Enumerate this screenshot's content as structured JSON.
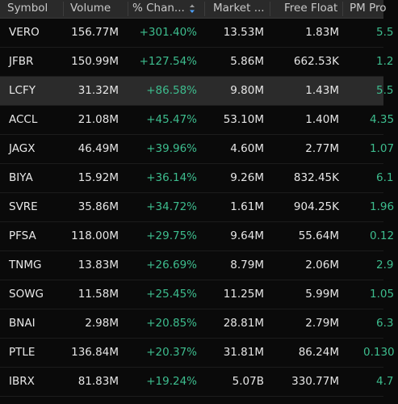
{
  "colors": {
    "positive": "#3dbd8e",
    "header_bg": "#2a2a2a",
    "row_selected_bg": "#2b2b2b",
    "background": "#0a0a0a"
  },
  "header": {
    "symbol": "Symbol",
    "volume": "Volume",
    "change": "% Chan...",
    "market_cap": "Market ...",
    "free_float": "Free Float",
    "pm": "PM Pro",
    "sort_icon": "sort-descending-icon"
  },
  "rows": [
    {
      "symbol": "VERO",
      "volume": "156.77M",
      "change": "+301.40%",
      "market_cap": "13.53M",
      "free_float": "1.83M",
      "pm": "5.5"
    },
    {
      "symbol": "JFBR",
      "volume": "150.99M",
      "change": "+127.54%",
      "market_cap": "5.86M",
      "free_float": "662.53K",
      "pm": "1.2"
    },
    {
      "symbol": "LCFY",
      "volume": "31.32M",
      "change": "+86.58%",
      "market_cap": "9.80M",
      "free_float": "1.43M",
      "pm": "5.5"
    },
    {
      "symbol": "ACCL",
      "volume": "21.08M",
      "change": "+45.47%",
      "market_cap": "53.10M",
      "free_float": "1.40M",
      "pm": "4.35"
    },
    {
      "symbol": "JAGX",
      "volume": "46.49M",
      "change": "+39.96%",
      "market_cap": "4.60M",
      "free_float": "2.77M",
      "pm": "1.07"
    },
    {
      "symbol": "BIYA",
      "volume": "15.92M",
      "change": "+36.14%",
      "market_cap": "9.26M",
      "free_float": "832.45K",
      "pm": "6.1"
    },
    {
      "symbol": "SVRE",
      "volume": "35.86M",
      "change": "+34.72%",
      "market_cap": "1.61M",
      "free_float": "904.25K",
      "pm": "1.96"
    },
    {
      "symbol": "PFSA",
      "volume": "118.00M",
      "change": "+29.75%",
      "market_cap": "9.64M",
      "free_float": "55.64M",
      "pm": "0.12"
    },
    {
      "symbol": "TNMG",
      "volume": "13.83M",
      "change": "+26.69%",
      "market_cap": "8.79M",
      "free_float": "2.06M",
      "pm": "2.9"
    },
    {
      "symbol": "SOWG",
      "volume": "11.58M",
      "change": "+25.45%",
      "market_cap": "11.25M",
      "free_float": "5.99M",
      "pm": "1.05"
    },
    {
      "symbol": "BNAI",
      "volume": "2.98M",
      "change": "+20.85%",
      "market_cap": "28.81M",
      "free_float": "2.79M",
      "pm": "6.3"
    },
    {
      "symbol": "PTLE",
      "volume": "136.84M",
      "change": "+20.37%",
      "market_cap": "31.81M",
      "free_float": "86.24M",
      "pm": "0.130"
    },
    {
      "symbol": "IBRX",
      "volume": "81.83M",
      "change": "+19.24%",
      "market_cap": "5.07B",
      "free_float": "330.77M",
      "pm": "4.7"
    }
  ]
}
